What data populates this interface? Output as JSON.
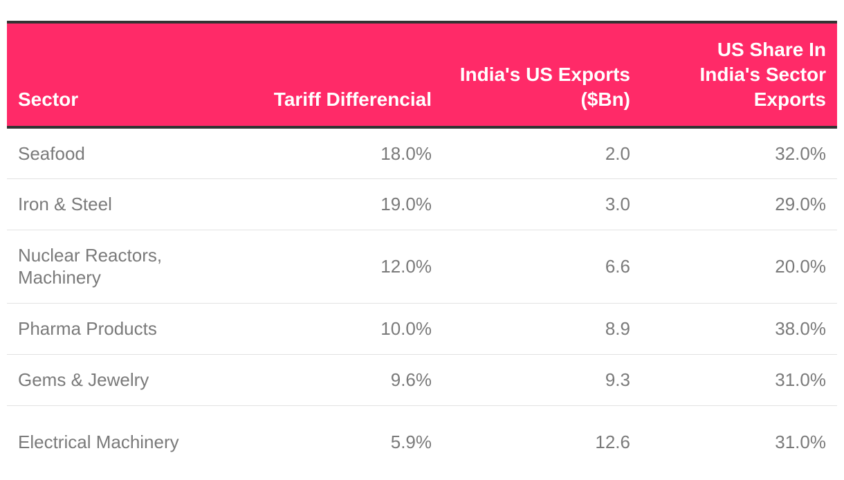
{
  "colors": {
    "header_background": "#ff2a68",
    "header_text": "#ffffff",
    "header_rule": "#333333",
    "body_text": "#7a7a7a",
    "row_divider": "#e2e2e2"
  },
  "chart_data": {
    "type": "table",
    "columns": [
      "Sector",
      "Tariff Differencial",
      "India's US Exports ($Bn)",
      "US Share In India's Sector Exports"
    ],
    "rows": [
      {
        "sector": "Seafood",
        "tariff": "18.0%",
        "exports": "2.0",
        "share": "32.0%"
      },
      {
        "sector": "Iron & Steel",
        "tariff": "19.0%",
        "exports": "3.0",
        "share": "29.0%"
      },
      {
        "sector": "Nuclear Reactors, Machinery",
        "tariff": "12.0%",
        "exports": "6.6",
        "share": "20.0%"
      },
      {
        "sector": "Pharma Products",
        "tariff": "10.0%",
        "exports": "8.9",
        "share": "38.0%"
      },
      {
        "sector": "Gems & Jewelry",
        "tariff": "9.6%",
        "exports": "9.3",
        "share": "31.0%"
      },
      {
        "sector": "Electrical Machinery",
        "tariff": "5.9%",
        "exports": "12.6",
        "share": "31.0%"
      }
    ]
  }
}
